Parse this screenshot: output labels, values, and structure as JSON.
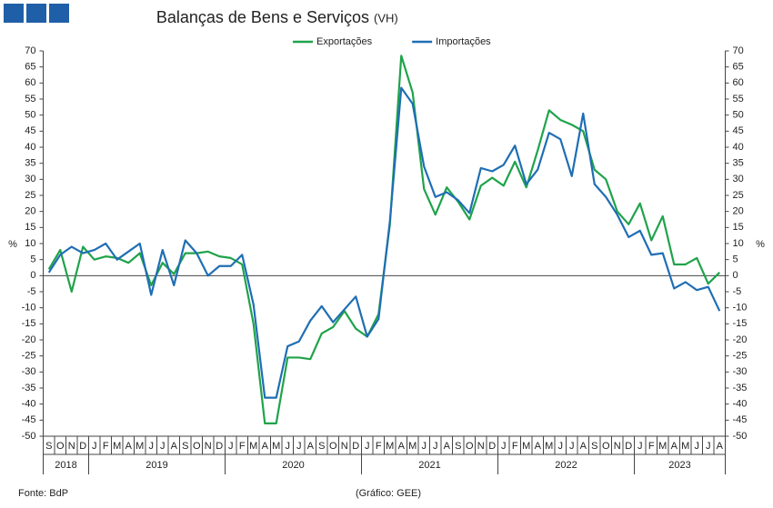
{
  "chart_data": {
    "type": "line",
    "title": "Balanças de Bens e Serviços",
    "subtitle": "(VH)",
    "ylabel": "%",
    "source": "Fonte: BdP",
    "credit": "(Gráfico: GEE)",
    "legend": "top",
    "categories": [
      "S",
      "O",
      "N",
      "D",
      "J",
      "F",
      "M",
      "A",
      "M",
      "J",
      "J",
      "A",
      "S",
      "O",
      "N",
      "D",
      "J",
      "F",
      "M",
      "A",
      "M",
      "J",
      "J",
      "A",
      "S",
      "O",
      "N",
      "D",
      "J",
      "F",
      "M",
      "A",
      "M",
      "J",
      "J",
      "A",
      "S",
      "O",
      "N",
      "D",
      "J",
      "F",
      "M",
      "A",
      "M",
      "J",
      "J",
      "A",
      "S",
      "O",
      "N",
      "D",
      "J",
      "F",
      "M",
      "A",
      "M",
      "J",
      "J",
      "A"
    ],
    "years": [
      "2018",
      "2019",
      "2020",
      "2021",
      "2022",
      "2023"
    ],
    "ylim": [
      -50,
      70
    ],
    "yticks": [
      -50,
      -45,
      -40,
      -35,
      -30,
      -25,
      -20,
      -15,
      -10,
      -5,
      0,
      5,
      10,
      15,
      20,
      25,
      30,
      35,
      40,
      45,
      50,
      55,
      60,
      65,
      70
    ],
    "series": [
      {
        "name": "Exportações",
        "color": "#1fa34a",
        "values": [
          2,
          8,
          -5,
          9,
          5,
          6,
          5.5,
          4,
          7,
          -3,
          4,
          0.5,
          7,
          7,
          7.5,
          6,
          5.5,
          3.5,
          -15,
          -46,
          -46,
          -25.5,
          -25.5,
          -26,
          -18,
          -16,
          -11,
          -16.5,
          -19,
          -12,
          16,
          68.5,
          57,
          27,
          19,
          27.5,
          23,
          17.5,
          28,
          30.5,
          28,
          35.5,
          27.5,
          39,
          51.5,
          48.5,
          47,
          45,
          33,
          30,
          20,
          16,
          22.5,
          11,
          18.5,
          3.5,
          3.5,
          5.5,
          -2.5,
          1
        ]
      },
      {
        "name": "Importações",
        "color": "#1f6eb4",
        "values": [
          1,
          6.5,
          9,
          7,
          8,
          10,
          5,
          7.5,
          10,
          -6,
          8,
          -3,
          11,
          7,
          0,
          3,
          3,
          6.5,
          -9,
          -38,
          -38,
          -22,
          -20.5,
          -14,
          -9.5,
          -14.5,
          -10.5,
          -6.5,
          -19,
          -13.5,
          17,
          58.5,
          53.5,
          34,
          24.5,
          26,
          23.5,
          19.5,
          33.5,
          32.5,
          34.5,
          40.5,
          28.5,
          33,
          44.5,
          42.5,
          31,
          50.5,
          28.5,
          24.5,
          19,
          12,
          14,
          6.5,
          7,
          -4,
          -2,
          -4.5,
          -3.5,
          -11
        ]
      }
    ]
  }
}
